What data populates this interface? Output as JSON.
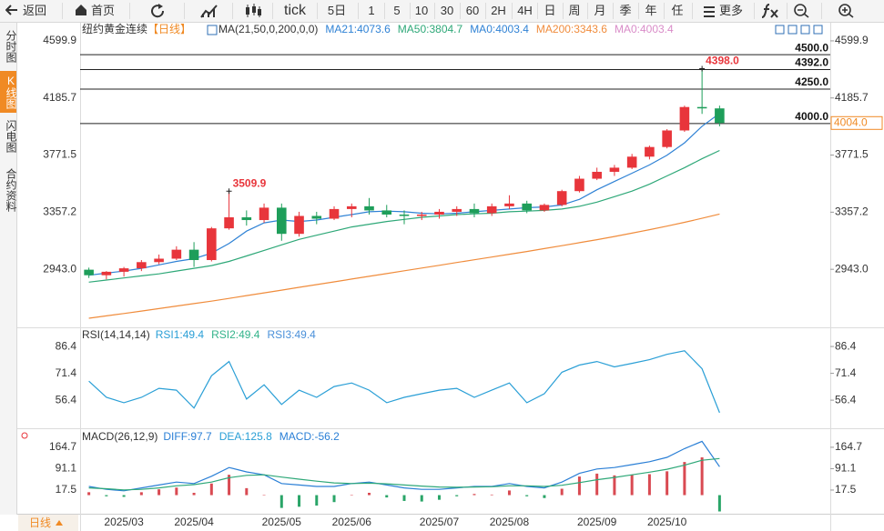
{
  "toolbar": [
    "返回",
    "首页",
    "tick",
    "5日",
    "1",
    "5",
    "10",
    "30",
    "60",
    "2H",
    "4H",
    "日",
    "周",
    "月",
    "季",
    "年",
    "任",
    "更多"
  ],
  "sidebar": [
    "分时图",
    "K线图",
    "闪电图",
    "合约资料"
  ],
  "period": "日线",
  "chart_data": [
    {
      "type": "candlestick",
      "title": "纽约黄金连续",
      "title_suffix": "【日线】",
      "legend": [
        {
          "text": "MA(21,50,0,200,0,0)",
          "color": "#333333"
        },
        {
          "text": "MA21:4073.6",
          "color": "#2f82d5"
        },
        {
          "text": "MA50:3804.7",
          "color": "#2ea878"
        },
        {
          "text": "MA0:4003.4",
          "color": "#2f82d5"
        },
        {
          "text": "MA200:3343.6",
          "color": "#f08c3c"
        },
        {
          "text": "MA0:4003.4",
          "color": "#d98cc8"
        }
      ],
      "categories": [
        null,
        null,
        "2025/03",
        null,
        null,
        null,
        "2025/04",
        null,
        null,
        null,
        null,
        "2025/05",
        null,
        null,
        null,
        "2025/06",
        null,
        null,
        null,
        null,
        "2025/07",
        null,
        null,
        null,
        "2025/08",
        null,
        null,
        null,
        null,
        "2025/09",
        null,
        null,
        null,
        "2025/10",
        null,
        null,
        null
      ],
      "open": [
        2940,
        2900,
        2925,
        2950,
        2995,
        3020,
        3085,
        3010,
        3240,
        3320,
        3300,
        3390,
        3200,
        3330,
        3310,
        3380,
        3400,
        3370,
        3340,
        3330,
        3340,
        3360,
        3380,
        3350,
        3400,
        3420,
        3370,
        3410,
        3510,
        3600,
        3650,
        3680,
        3760,
        3830,
        3950,
        4120,
        4110
      ],
      "high": [
        2955,
        2930,
        2960,
        3010,
        3050,
        3110,
        3140,
        3250,
        3509.9,
        3370,
        3420,
        3420,
        3360,
        3360,
        3400,
        3420,
        3460,
        3410,
        3370,
        3360,
        3380,
        3400,
        3420,
        3420,
        3480,
        3440,
        3420,
        3520,
        3620,
        3680,
        3700,
        3780,
        3840,
        3960,
        4130,
        4398,
        4130
      ],
      "low": [
        2880,
        2870,
        2890,
        2930,
        2980,
        3010,
        2960,
        3000,
        3230,
        3260,
        3280,
        3150,
        3180,
        3270,
        3300,
        3320,
        3340,
        3320,
        3270,
        3300,
        3310,
        3330,
        3320,
        3330,
        3380,
        3350,
        3360,
        3400,
        3500,
        3590,
        3620,
        3670,
        3740,
        3820,
        3940,
        4070,
        3980
      ],
      "close": [
        2900,
        2925,
        2950,
        2995,
        3020,
        3085,
        3010,
        3240,
        3320,
        3300,
        3390,
        3200,
        3330,
        3310,
        3380,
        3400,
        3370,
        3340,
        3330,
        3340,
        3360,
        3380,
        3350,
        3400,
        3420,
        3370,
        3410,
        3510,
        3600,
        3650,
        3680,
        3760,
        3830,
        3950,
        4120,
        4110,
        4004
      ],
      "up_color": "#e8353b",
      "down_color": "#1e9e5a",
      "overlays": [
        {
          "name": "MA21",
          "color": "#2f82d5",
          "values": [
            2900,
            2915,
            2930,
            2950,
            2975,
            3000,
            3020,
            3060,
            3130,
            3220,
            3280,
            3300,
            3290,
            3300,
            3320,
            3340,
            3360,
            3365,
            3360,
            3350,
            3345,
            3350,
            3360,
            3370,
            3380,
            3390,
            3395,
            3410,
            3450,
            3520,
            3580,
            3640,
            3700,
            3770,
            3860,
            3980,
            4073.6
          ]
        },
        {
          "name": "MA50",
          "color": "#2ea878",
          "values": [
            2850,
            2865,
            2880,
            2895,
            2910,
            2930,
            2950,
            2970,
            3000,
            3040,
            3080,
            3120,
            3160,
            3190,
            3220,
            3250,
            3270,
            3290,
            3305,
            3320,
            3330,
            3340,
            3345,
            3350,
            3360,
            3365,
            3370,
            3380,
            3400,
            3430,
            3470,
            3510,
            3560,
            3620,
            3680,
            3745,
            3804.7
          ]
        },
        {
          "name": "MA200",
          "color": "#f08c3c",
          "values": [
            2588,
            2605,
            2622,
            2640,
            2658,
            2676,
            2694,
            2712,
            2732,
            2752,
            2772,
            2792,
            2812,
            2832,
            2852,
            2872,
            2892,
            2912,
            2932,
            2952,
            2972,
            2992,
            3012,
            3032,
            3052,
            3072,
            3093,
            3114,
            3136,
            3158,
            3181,
            3205,
            3230,
            3256,
            3284,
            3313,
            3343.6
          ]
        }
      ],
      "levels": [
        {
          "value": 4500,
          "label": "4500.0"
        },
        {
          "value": 4392,
          "label": "4392.0"
        },
        {
          "value": 4250,
          "label": "4250.0"
        },
        {
          "value": 4000,
          "label": "4000.0"
        }
      ],
      "annotations": [
        {
          "value": 4398,
          "label": "4398.0"
        },
        {
          "value": 3509.9,
          "label": "3509.9"
        }
      ],
      "last_price": {
        "value": 4004,
        "label": "4004.0"
      },
      "ylim": [
        2522,
        4738
      ],
      "yticks": [
        4599.9,
        4185.7,
        3771.5,
        3357.2,
        {
          "value": 2943,
          "label": "2943.0"
        }
      ]
    },
    {
      "type": "line",
      "title": "RSI(14,14,14)",
      "legend": [
        {
          "text": "RSI1:49.4",
          "color": "#2a9fd6"
        },
        {
          "text": "RSI2:49.4",
          "color": "#33b38a"
        },
        {
          "text": "RSI3:49.4",
          "color": "#4a90d9"
        }
      ],
      "series": [
        {
          "color": "#2a9fd6",
          "values": [
            67,
            58,
            55,
            58,
            63,
            62,
            52,
            70,
            78,
            57,
            65,
            54,
            62,
            58,
            64,
            66,
            62,
            55,
            58,
            60,
            62,
            63,
            58,
            62,
            66,
            55,
            60,
            72,
            76,
            78,
            75,
            77,
            79,
            82,
            84,
            74,
            49.4
          ]
        }
      ],
      "ylim": [
        41.2,
        96.1
      ],
      "yticks": [
        86.4,
        71.4,
        56.4
      ]
    },
    {
      "type": "macd",
      "title": "MACD(26,12,9)",
      "legend": [
        {
          "text": "DIFF:97.7",
          "color": "#2a7fd6"
        },
        {
          "text": "DEA:125.8",
          "color": "#2a9fd6"
        },
        {
          "text": "MACD:-56.2",
          "color": "#2a7fd6"
        }
      ],
      "series": [
        {
          "name": "DIFF",
          "color": "#2a7fd6",
          "values": [
            30,
            20,
            15,
            25,
            35,
            45,
            40,
            65,
            95,
            80,
            70,
            40,
            35,
            30,
            30,
            40,
            45,
            35,
            25,
            20,
            20,
            25,
            30,
            30,
            40,
            30,
            25,
            45,
            75,
            90,
            95,
            105,
            115,
            130,
            160,
            185,
            97.7
          ]
        },
        {
          "name": "DEA",
          "color": "#2ea878",
          "values": [
            25,
            22,
            18,
            20,
            25,
            32,
            36,
            45,
            60,
            68,
            70,
            62,
            55,
            48,
            42,
            40,
            41,
            39,
            35,
            31,
            28,
            27,
            28,
            29,
            32,
            32,
            30,
            34,
            43,
            53,
            61,
            70,
            79,
            89,
            103,
            120,
            125.8
          ]
        }
      ],
      "histogram": {
        "up_color": "#d94a52",
        "down_color": "#2aa568",
        "values": [
          10,
          -4,
          -6,
          10,
          20,
          26,
          8,
          40,
          70,
          24,
          0,
          -44,
          -40,
          -36,
          -24,
          0,
          8,
          -8,
          -20,
          -22,
          -16,
          -4,
          4,
          2,
          16,
          -4,
          -10,
          22,
          64,
          74,
          68,
          70,
          72,
          82,
          114,
          130,
          -56.2
        ]
      },
      "ylim": [
        -64,
        227
      ],
      "yticks": [
        164.7,
        91.1,
        17.5
      ]
    }
  ]
}
